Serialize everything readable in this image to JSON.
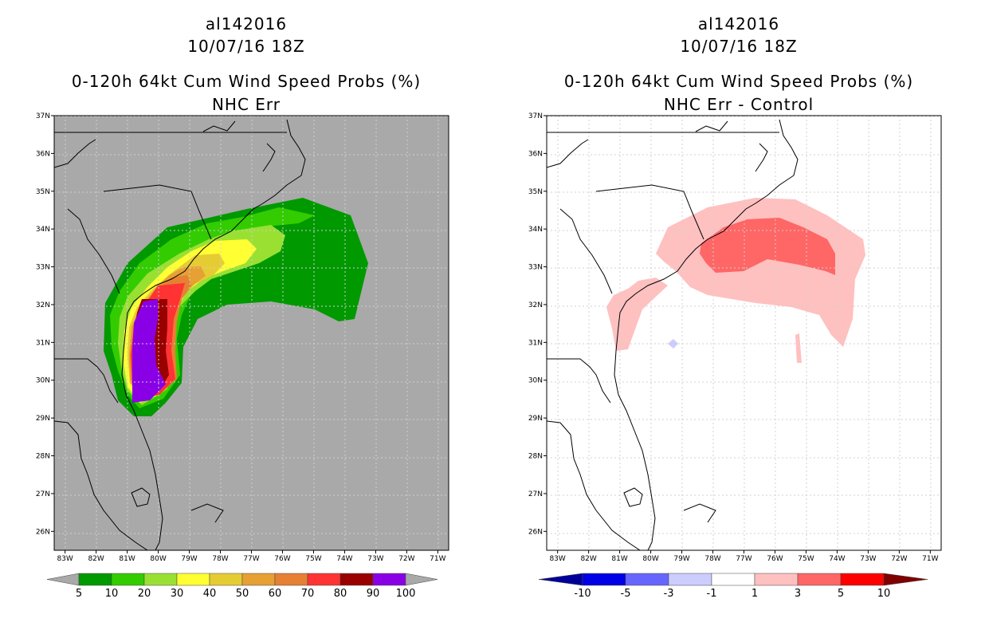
{
  "left_panel": {
    "title_line1": "al142016",
    "title_line2": "10/07/16 18Z",
    "title_line3": "0-120h 64kt Cum Wind Speed Probs (%)",
    "title_line4": "NHC Err",
    "map_background": "#a9a9a9",
    "lat_labels": [
      "37N",
      "36N",
      "35N",
      "34N",
      "33N",
      "32N",
      "31N",
      "30N",
      "29N",
      "28N",
      "27N",
      "26N"
    ],
    "lon_labels": [
      "83W",
      "82W",
      "81W",
      "80W",
      "79W",
      "78W",
      "77W",
      "76W",
      "75W",
      "74W",
      "73W",
      "72W",
      "71W"
    ],
    "colorbar": {
      "colors": [
        "#009900",
        "#33cc00",
        "#99e033",
        "#ffff33",
        "#e6cc33",
        "#e6a033",
        "#e68033",
        "#ff3333",
        "#990000",
        "#8a00e6"
      ],
      "labels": [
        "5",
        "10",
        "20",
        "30",
        "40",
        "50",
        "60",
        "70",
        "80",
        "90",
        "100"
      ],
      "end_color": "#a9a9a9"
    }
  },
  "right_panel": {
    "title_line1": "al142016",
    "title_line2": "10/07/16 18Z",
    "title_line3": "0-120h 64kt Cum Wind Speed Probs (%)",
    "title_line4": "NHC Err - Control",
    "map_background": "#ffffff",
    "lat_labels": [
      "37N",
      "36N",
      "35N",
      "34N",
      "33N",
      "32N",
      "31N",
      "30N",
      "29N",
      "28N",
      "27N",
      "26N"
    ],
    "lon_labels": [
      "83W",
      "82W",
      "81W",
      "80W",
      "79W",
      "78W",
      "77W",
      "76W",
      "75W",
      "74W",
      "73W",
      "72W",
      "71W"
    ],
    "colorbar": {
      "colors": [
        "#0000e6",
        "#6666ff",
        "#ccccff",
        "#ffffff",
        "#ffc0c0",
        "#ff6666",
        "#ff0000"
      ],
      "labels": [
        "-10",
        "-5",
        "-3",
        "-1",
        "1",
        "3",
        "5",
        "10"
      ],
      "low_end_color": "#000099",
      "high_end_color": "#800000"
    }
  }
}
